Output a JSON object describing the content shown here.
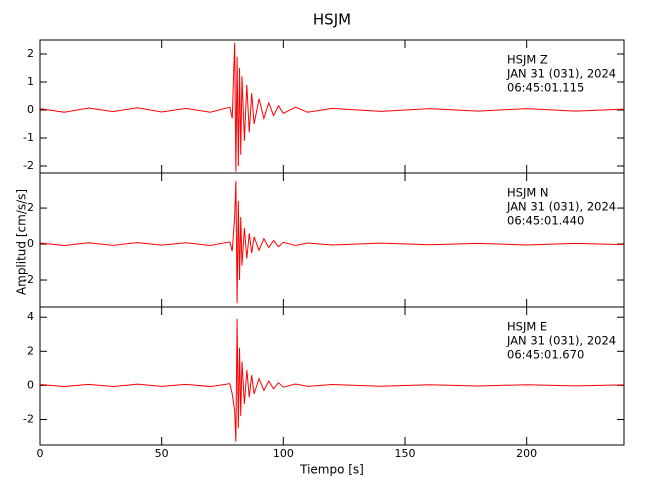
{
  "title": "HSJM",
  "xlabel": "Tiempo [s]",
  "ylabel": "Amplitud [cm/s/s]",
  "chart_data": [
    {
      "type": "line",
      "annotations": [
        "HSJM   Z",
        "JAN 31 (031), 2024",
        "06:45:01.115"
      ],
      "x": [
        0,
        10,
        20,
        30,
        40,
        50,
        60,
        70,
        78,
        79,
        80,
        80.5,
        81,
        81.5,
        82,
        82.5,
        83,
        84,
        85,
        86,
        87,
        88,
        90,
        92,
        94,
        96,
        98,
        100,
        105,
        110,
        120,
        140,
        160,
        180,
        200,
        220,
        240
      ],
      "series": [
        {
          "color": "#ff0000",
          "values": [
            0.05,
            -0.08,
            0.07,
            -0.06,
            0.08,
            -0.07,
            0.06,
            -0.08,
            0.1,
            -0.3,
            2.4,
            -2.2,
            1.9,
            -2.0,
            1.5,
            -1.6,
            1.2,
            -1.1,
            0.9,
            -0.8,
            0.6,
            -0.5,
            0.4,
            -0.3,
            0.25,
            -0.2,
            0.15,
            -0.12,
            0.1,
            -0.08,
            0.06,
            -0.05,
            0.05,
            -0.04,
            0.05,
            -0.04,
            0.03
          ]
        }
      ],
      "xlim": [
        0,
        240
      ],
      "xticks": [
        0,
        50,
        100,
        150,
        200
      ],
      "ylim": [
        -2.25,
        2.5
      ],
      "yticks": [
        -2,
        -1,
        0,
        1,
        2
      ]
    },
    {
      "type": "line",
      "annotations": [
        "HSJM   N",
        "JAN 31 (031), 2024",
        "06:45:01.440"
      ],
      "x": [
        0,
        10,
        20,
        30,
        40,
        50,
        60,
        70,
        78,
        79,
        80,
        80.5,
        81,
        81.5,
        82,
        82.5,
        83,
        84,
        85,
        86,
        87,
        88,
        90,
        92,
        94,
        96,
        98,
        100,
        105,
        110,
        120,
        140,
        160,
        180,
        200,
        220,
        240
      ],
      "series": [
        {
          "color": "#ff0000",
          "values": [
            0.06,
            -0.08,
            0.07,
            -0.07,
            0.08,
            -0.06,
            0.07,
            -0.08,
            0.12,
            -0.4,
            1.5,
            3.5,
            -3.3,
            2.4,
            -2.0,
            1.5,
            -1.2,
            0.9,
            -0.8,
            0.6,
            -0.5,
            0.4,
            -0.35,
            0.3,
            -0.2,
            0.2,
            -0.15,
            0.1,
            -0.08,
            0.06,
            -0.05,
            0.05,
            -0.04,
            0.04,
            -0.05,
            0.04,
            -0.03
          ]
        }
      ],
      "xlim": [
        0,
        240
      ],
      "xticks": [
        0,
        50,
        100,
        150,
        200
      ],
      "ylim": [
        -3.5,
        3.95
      ],
      "yticks": [
        -2,
        0,
        2
      ]
    },
    {
      "type": "line",
      "annotations": [
        "HSJM   E",
        "JAN 31 (031), 2024",
        "06:45:01.670"
      ],
      "x": [
        0,
        10,
        20,
        30,
        40,
        50,
        60,
        70,
        78,
        79,
        80,
        80.5,
        81,
        81.5,
        82,
        82.5,
        83,
        84,
        85,
        86,
        87,
        88,
        90,
        92,
        94,
        96,
        98,
        100,
        105,
        110,
        120,
        140,
        160,
        180,
        200,
        220,
        240
      ],
      "series": [
        {
          "color": "#ff0000",
          "values": [
            0.05,
            -0.07,
            0.06,
            -0.07,
            0.07,
            -0.06,
            0.06,
            -0.07,
            0.1,
            -0.5,
            -1.5,
            -3.3,
            3.9,
            -2.5,
            2.2,
            -1.8,
            1.4,
            -1.1,
            0.9,
            -0.7,
            0.6,
            -0.5,
            0.4,
            -0.3,
            0.25,
            -0.2,
            0.15,
            -0.1,
            0.08,
            -0.06,
            0.05,
            -0.05,
            0.04,
            -0.04,
            0.04,
            -0.03,
            0.03
          ]
        }
      ],
      "xlim": [
        0,
        240
      ],
      "xticks": [
        0,
        50,
        100,
        150,
        200
      ],
      "ylim": [
        -3.5,
        4.6
      ],
      "yticks": [
        -2,
        0,
        2,
        4
      ]
    }
  ]
}
